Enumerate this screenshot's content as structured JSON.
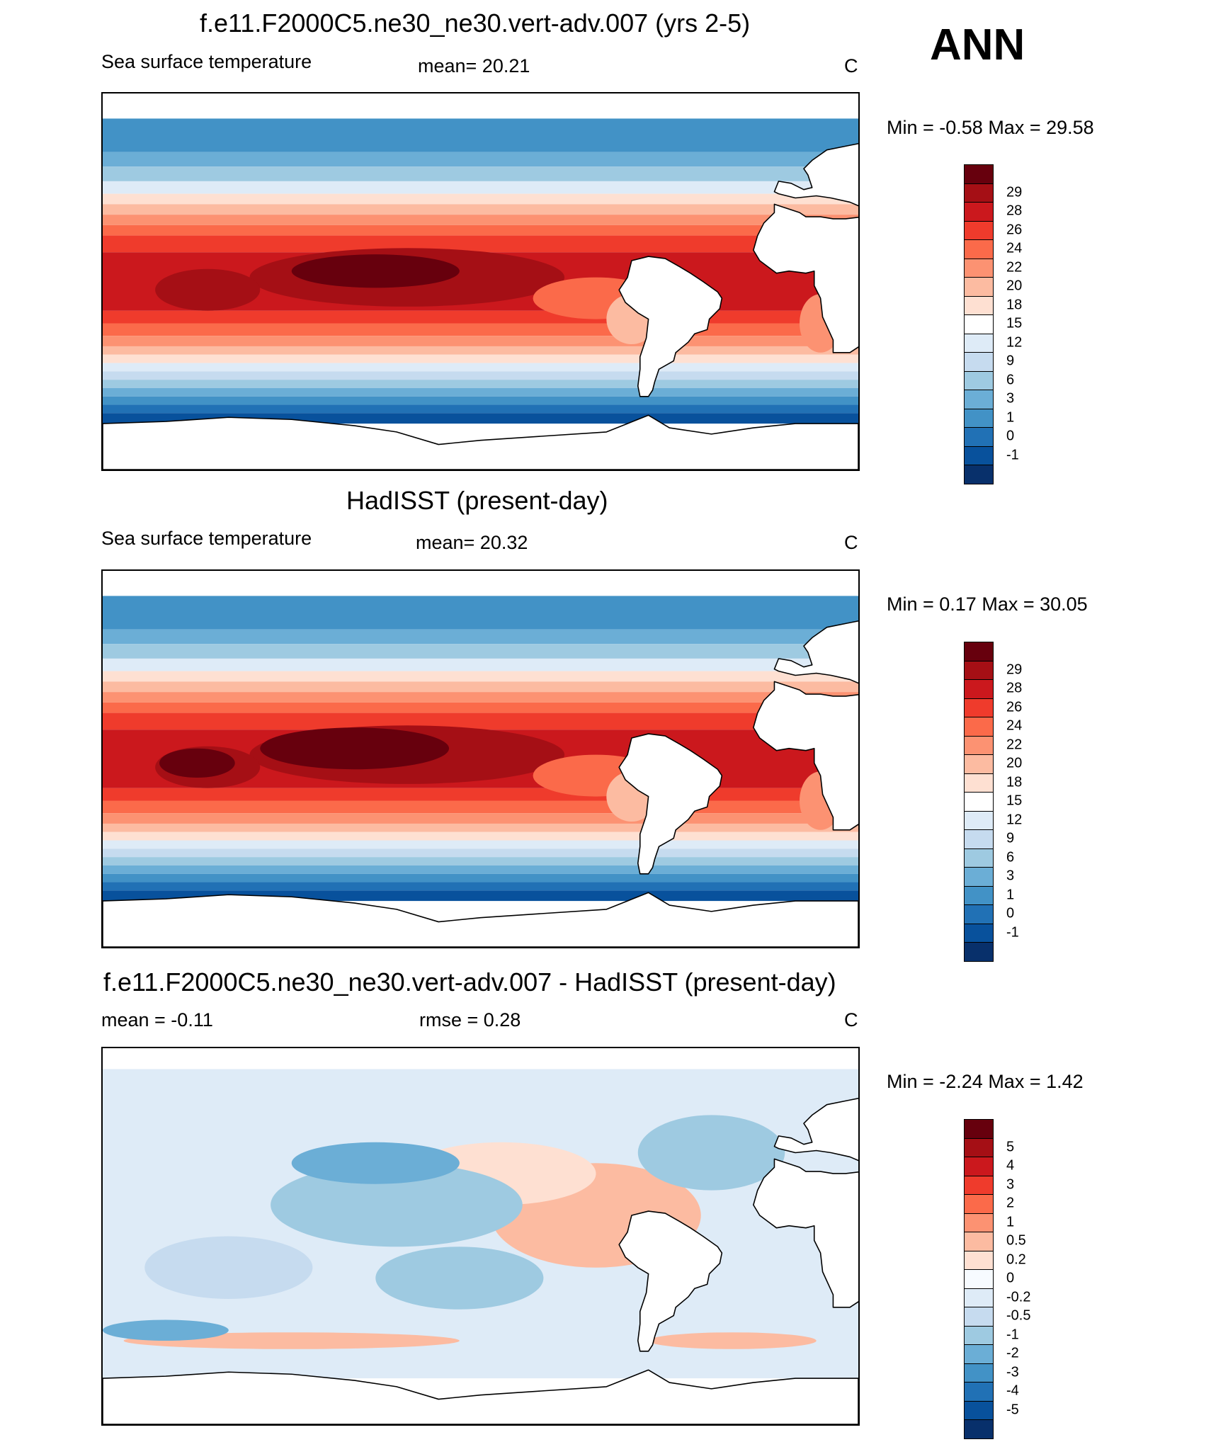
{
  "season": "ANN",
  "panels": [
    {
      "id": "model",
      "title": "f.e11.F2000C5.ne30_ne30.vert-adv.007 (yrs 2-5)",
      "left_label": "Sea surface temperature",
      "center_label": "mean=  20.21",
      "units": "C",
      "minmax": "Min =  -0.58 Max =  29.58",
      "colorbar": {
        "colors": [
          "#67000d",
          "#a50f15",
          "#cb181d",
          "#ef3b2c",
          "#fb6a4a",
          "#fc9272",
          "#fcbba1",
          "#fee0d2",
          "#ffffff",
          "#deebf7",
          "#c6dbef",
          "#9ecae1",
          "#6baed6",
          "#4292c6",
          "#2171b5",
          "#08519c",
          "#08306b"
        ],
        "labels": [
          "29",
          "28",
          "26",
          "24",
          "22",
          "20",
          "18",
          "15",
          "12",
          "9",
          "6",
          "3",
          "1",
          "0",
          "-1"
        ]
      },
      "field": "model"
    },
    {
      "id": "obs",
      "title": "HadISST (present-day)",
      "left_label": "Sea surface temperature",
      "center_label": "mean=  20.32",
      "units": "C",
      "minmax": "Min =   0.17 Max =  30.05",
      "colorbar": {
        "colors": [
          "#67000d",
          "#a50f15",
          "#cb181d",
          "#ef3b2c",
          "#fb6a4a",
          "#fc9272",
          "#fcbba1",
          "#fee0d2",
          "#ffffff",
          "#deebf7",
          "#c6dbef",
          "#9ecae1",
          "#6baed6",
          "#4292c6",
          "#2171b5",
          "#08519c",
          "#08306b"
        ],
        "labels": [
          "29",
          "28",
          "26",
          "24",
          "22",
          "20",
          "18",
          "15",
          "12",
          "9",
          "6",
          "3",
          "1",
          "0",
          "-1"
        ]
      },
      "field": "obs"
    },
    {
      "id": "diff",
      "title": "f.e11.F2000C5.ne30_ne30.vert-adv.007 - HadISST (present-day)",
      "left_label": "mean =  -0.11",
      "center_label": "rmse =    0.28",
      "units": "C",
      "minmax": "Min =  -2.24 Max =   1.42",
      "colorbar": {
        "colors": [
          "#67000d",
          "#a50f15",
          "#cb181d",
          "#ef3b2c",
          "#fb6a4a",
          "#fc9272",
          "#fcbba1",
          "#fee0d2",
          "#f7fbff",
          "#deebf7",
          "#c6dbef",
          "#9ecae1",
          "#6baed6",
          "#4292c6",
          "#2171b5",
          "#08519c",
          "#08306b"
        ],
        "labels": [
          "5",
          "4",
          "3",
          "2",
          "1",
          "0.5",
          "0.2",
          "0",
          "-0.2",
          "-0.5",
          "-1",
          "-2",
          "-3",
          "-4",
          "-5"
        ]
      },
      "field": "diff"
    }
  ]
}
